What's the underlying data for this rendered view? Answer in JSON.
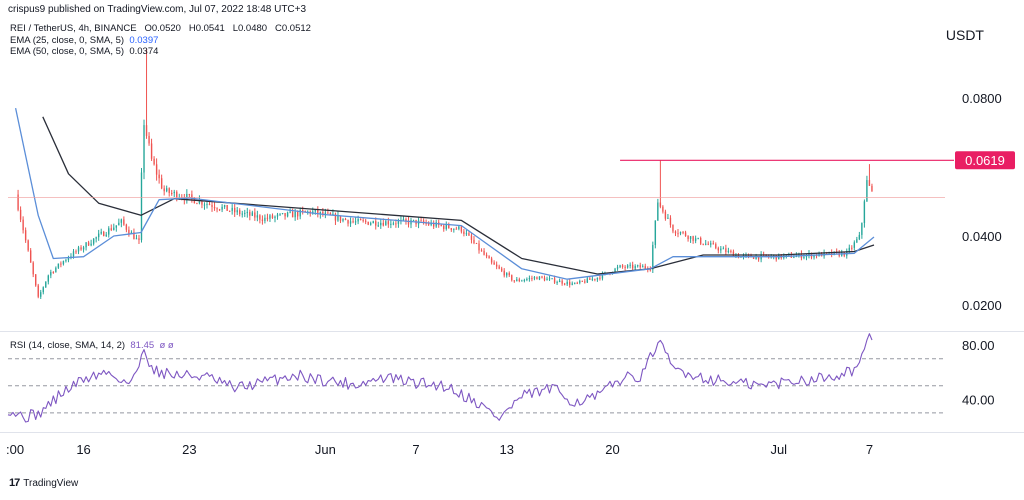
{
  "header": {
    "publisher": "crispus9 published on TradingView.com, Jul 07, 2022 18:48 UTC+3"
  },
  "symbol_line": {
    "pair": "REI / TetherUS, 4h, BINANCE",
    "open_label": "O",
    "open": "0.0520",
    "high_label": "H",
    "high": "0.0541",
    "low_label": "L",
    "low": "0.0480",
    "close_label": "C",
    "close": "0.0512"
  },
  "indicators": {
    "ema25_label": "EMA (25, close, 0, SMA, 5)",
    "ema25_value": "0.0397",
    "ema50_label": "EMA (50, close, 0, SMA, 5)",
    "ema50_value": "0.0374",
    "rsi_label": "RSI (14, close, SMA, 14, 2)",
    "rsi_value": "81.45",
    "rsi_extra": "ø ø"
  },
  "currency": "USDT",
  "branding": "TradingView",
  "colors": {
    "up": "#26a69a",
    "down": "#ef5350",
    "ema25": "#5b8ed8",
    "ema50": "#2a2e39",
    "rsi": "#7e57c2",
    "resistance": "#e91e63"
  },
  "chart_data": [
    {
      "type": "candlestick",
      "title": "REI / TetherUS, 4h, BINANCE",
      "ylabel": "USDT",
      "ylim": [
        0.0128,
        0.1025
      ],
      "y_ticks": [
        0.02,
        0.04,
        0.08
      ],
      "y_tick_labels": [
        "0.0200",
        "0.0400",
        "0.0800"
      ],
      "x_ticks": [
        {
          "day": 0,
          "label": ":00"
        },
        {
          "day": 4,
          "label": "16"
        },
        {
          "day": 11,
          "label": "23"
        },
        {
          "day": 20,
          "label": "Jun"
        },
        {
          "day": 26,
          "label": "7"
        },
        {
          "day": 32,
          "label": "13"
        },
        {
          "day": 39,
          "label": "20"
        },
        {
          "day": 50,
          "label": "Jul"
        },
        {
          "day": 56,
          "label": "7"
        }
      ],
      "x_days_range": [
        -1,
        61
      ],
      "annotations": [
        {
          "type": "horizontal-line",
          "value": 0.0619,
          "label": "0.0619",
          "x_start_day": 39.5
        },
        {
          "type": "price-line",
          "value": 0.0512
        }
      ],
      "close_path": [
        {
          "day": -0.5,
          "close": 0.052
        },
        {
          "day": 0.3,
          "close": 0.036
        },
        {
          "day": 1.0,
          "close": 0.022
        },
        {
          "day": 1.7,
          "close": 0.029
        },
        {
          "day": 3.0,
          "close": 0.034
        },
        {
          "day": 5.0,
          "close": 0.04
        },
        {
          "day": 6.5,
          "close": 0.044
        },
        {
          "day": 7.7,
          "close": 0.038
        },
        {
          "day": 7.95,
          "close": 0.074
        },
        {
          "day": 8.5,
          "close": 0.062
        },
        {
          "day": 9.3,
          "close": 0.053
        },
        {
          "day": 11.0,
          "close": 0.051
        },
        {
          "day": 14.0,
          "close": 0.047
        },
        {
          "day": 16.0,
          "close": 0.045
        },
        {
          "day": 19.0,
          "close": 0.047
        },
        {
          "day": 22.0,
          "close": 0.044
        },
        {
          "day": 26.0,
          "close": 0.044
        },
        {
          "day": 29.0,
          "close": 0.042
        },
        {
          "day": 31.0,
          "close": 0.032
        },
        {
          "day": 32.5,
          "close": 0.027
        },
        {
          "day": 34.0,
          "close": 0.028
        },
        {
          "day": 36.5,
          "close": 0.026
        },
        {
          "day": 38.0,
          "close": 0.028
        },
        {
          "day": 39.5,
          "close": 0.031
        },
        {
          "day": 41.5,
          "close": 0.031
        },
        {
          "day": 42.0,
          "close": 0.05
        },
        {
          "day": 43.0,
          "close": 0.042
        },
        {
          "day": 45.0,
          "close": 0.038
        },
        {
          "day": 47.5,
          "close": 0.034
        },
        {
          "day": 50.0,
          "close": 0.034
        },
        {
          "day": 54.5,
          "close": 0.035
        },
        {
          "day": 55.4,
          "close": 0.04
        },
        {
          "day": 55.8,
          "close": 0.056
        },
        {
          "day": 56.3,
          "close": 0.0512
        }
      ],
      "highlighted_highs": [
        {
          "day": 8.1,
          "high": 0.094
        },
        {
          "day": 42.1,
          "high": 0.0619
        },
        {
          "day": 56.05,
          "high": 0.0608
        }
      ],
      "ema25": [
        {
          "day": -0.5,
          "value": 0.077
        },
        {
          "day": 1,
          "value": 0.046
        },
        {
          "day": 2,
          "value": 0.0335
        },
        {
          "day": 4,
          "value": 0.034
        },
        {
          "day": 6,
          "value": 0.04
        },
        {
          "day": 7.8,
          "value": 0.041
        },
        {
          "day": 9,
          "value": 0.0505
        },
        {
          "day": 11,
          "value": 0.051
        },
        {
          "day": 20,
          "value": 0.0462
        },
        {
          "day": 29,
          "value": 0.043
        },
        {
          "day": 33,
          "value": 0.0305
        },
        {
          "day": 36,
          "value": 0.0275
        },
        {
          "day": 41.5,
          "value": 0.0305
        },
        {
          "day": 43,
          "value": 0.034
        },
        {
          "day": 50,
          "value": 0.034
        },
        {
          "day": 55,
          "value": 0.035
        },
        {
          "day": 56.3,
          "value": 0.0397
        }
      ],
      "ema50": [
        {
          "day": 1.3,
          "value": 0.0745
        },
        {
          "day": 3,
          "value": 0.058
        },
        {
          "day": 5,
          "value": 0.0495
        },
        {
          "day": 7.8,
          "value": 0.046
        },
        {
          "day": 10,
          "value": 0.0508
        },
        {
          "day": 20,
          "value": 0.0475
        },
        {
          "day": 29,
          "value": 0.0445
        },
        {
          "day": 33,
          "value": 0.0335
        },
        {
          "day": 38,
          "value": 0.029
        },
        {
          "day": 41.5,
          "value": 0.0305
        },
        {
          "day": 45,
          "value": 0.0345
        },
        {
          "day": 50,
          "value": 0.0345
        },
        {
          "day": 55,
          "value": 0.0355
        },
        {
          "day": 56.3,
          "value": 0.0374
        }
      ]
    },
    {
      "type": "line",
      "title": "RSI (14, close, SMA, 14, 2)",
      "ylim": [
        17.3,
        89.0
      ],
      "y_ticks": [
        40,
        80
      ],
      "y_tick_labels": [
        "40.00",
        "80.00"
      ],
      "bands": [
        30,
        50,
        70
      ],
      "series": [
        {
          "name": "RSI",
          "points": [
            {
              "day": -1,
              "value": 33
            },
            {
              "day": 0,
              "value": 27
            },
            {
              "day": 1,
              "value": 29
            },
            {
              "day": 2.5,
              "value": 44
            },
            {
              "day": 4,
              "value": 55
            },
            {
              "day": 5.5,
              "value": 60
            },
            {
              "day": 7,
              "value": 52
            },
            {
              "day": 7.5,
              "value": 58
            },
            {
              "day": 8,
              "value": 80
            },
            {
              "day": 8.5,
              "value": 62
            },
            {
              "day": 10,
              "value": 58
            },
            {
              "day": 12,
              "value": 57
            },
            {
              "day": 14,
              "value": 48
            },
            {
              "day": 16,
              "value": 53
            },
            {
              "day": 18,
              "value": 58
            },
            {
              "day": 20,
              "value": 54
            },
            {
              "day": 22,
              "value": 51
            },
            {
              "day": 24,
              "value": 56
            },
            {
              "day": 26,
              "value": 52
            },
            {
              "day": 28,
              "value": 50
            },
            {
              "day": 30,
              "value": 38
            },
            {
              "day": 31.5,
              "value": 26
            },
            {
              "day": 33,
              "value": 42
            },
            {
              "day": 35,
              "value": 48
            },
            {
              "day": 36.5,
              "value": 38
            },
            {
              "day": 38,
              "value": 42
            },
            {
              "day": 39.5,
              "value": 55
            },
            {
              "day": 41,
              "value": 58
            },
            {
              "day": 42,
              "value": 83
            },
            {
              "day": 43,
              "value": 63
            },
            {
              "day": 45,
              "value": 56
            },
            {
              "day": 47,
              "value": 52
            },
            {
              "day": 49,
              "value": 50
            },
            {
              "day": 51,
              "value": 54
            },
            {
              "day": 53,
              "value": 56
            },
            {
              "day": 55,
              "value": 62
            },
            {
              "day": 55.6,
              "value": 72
            },
            {
              "day": 56,
              "value": 85
            },
            {
              "day": 56.3,
              "value": 81.45
            }
          ]
        }
      ]
    }
  ]
}
